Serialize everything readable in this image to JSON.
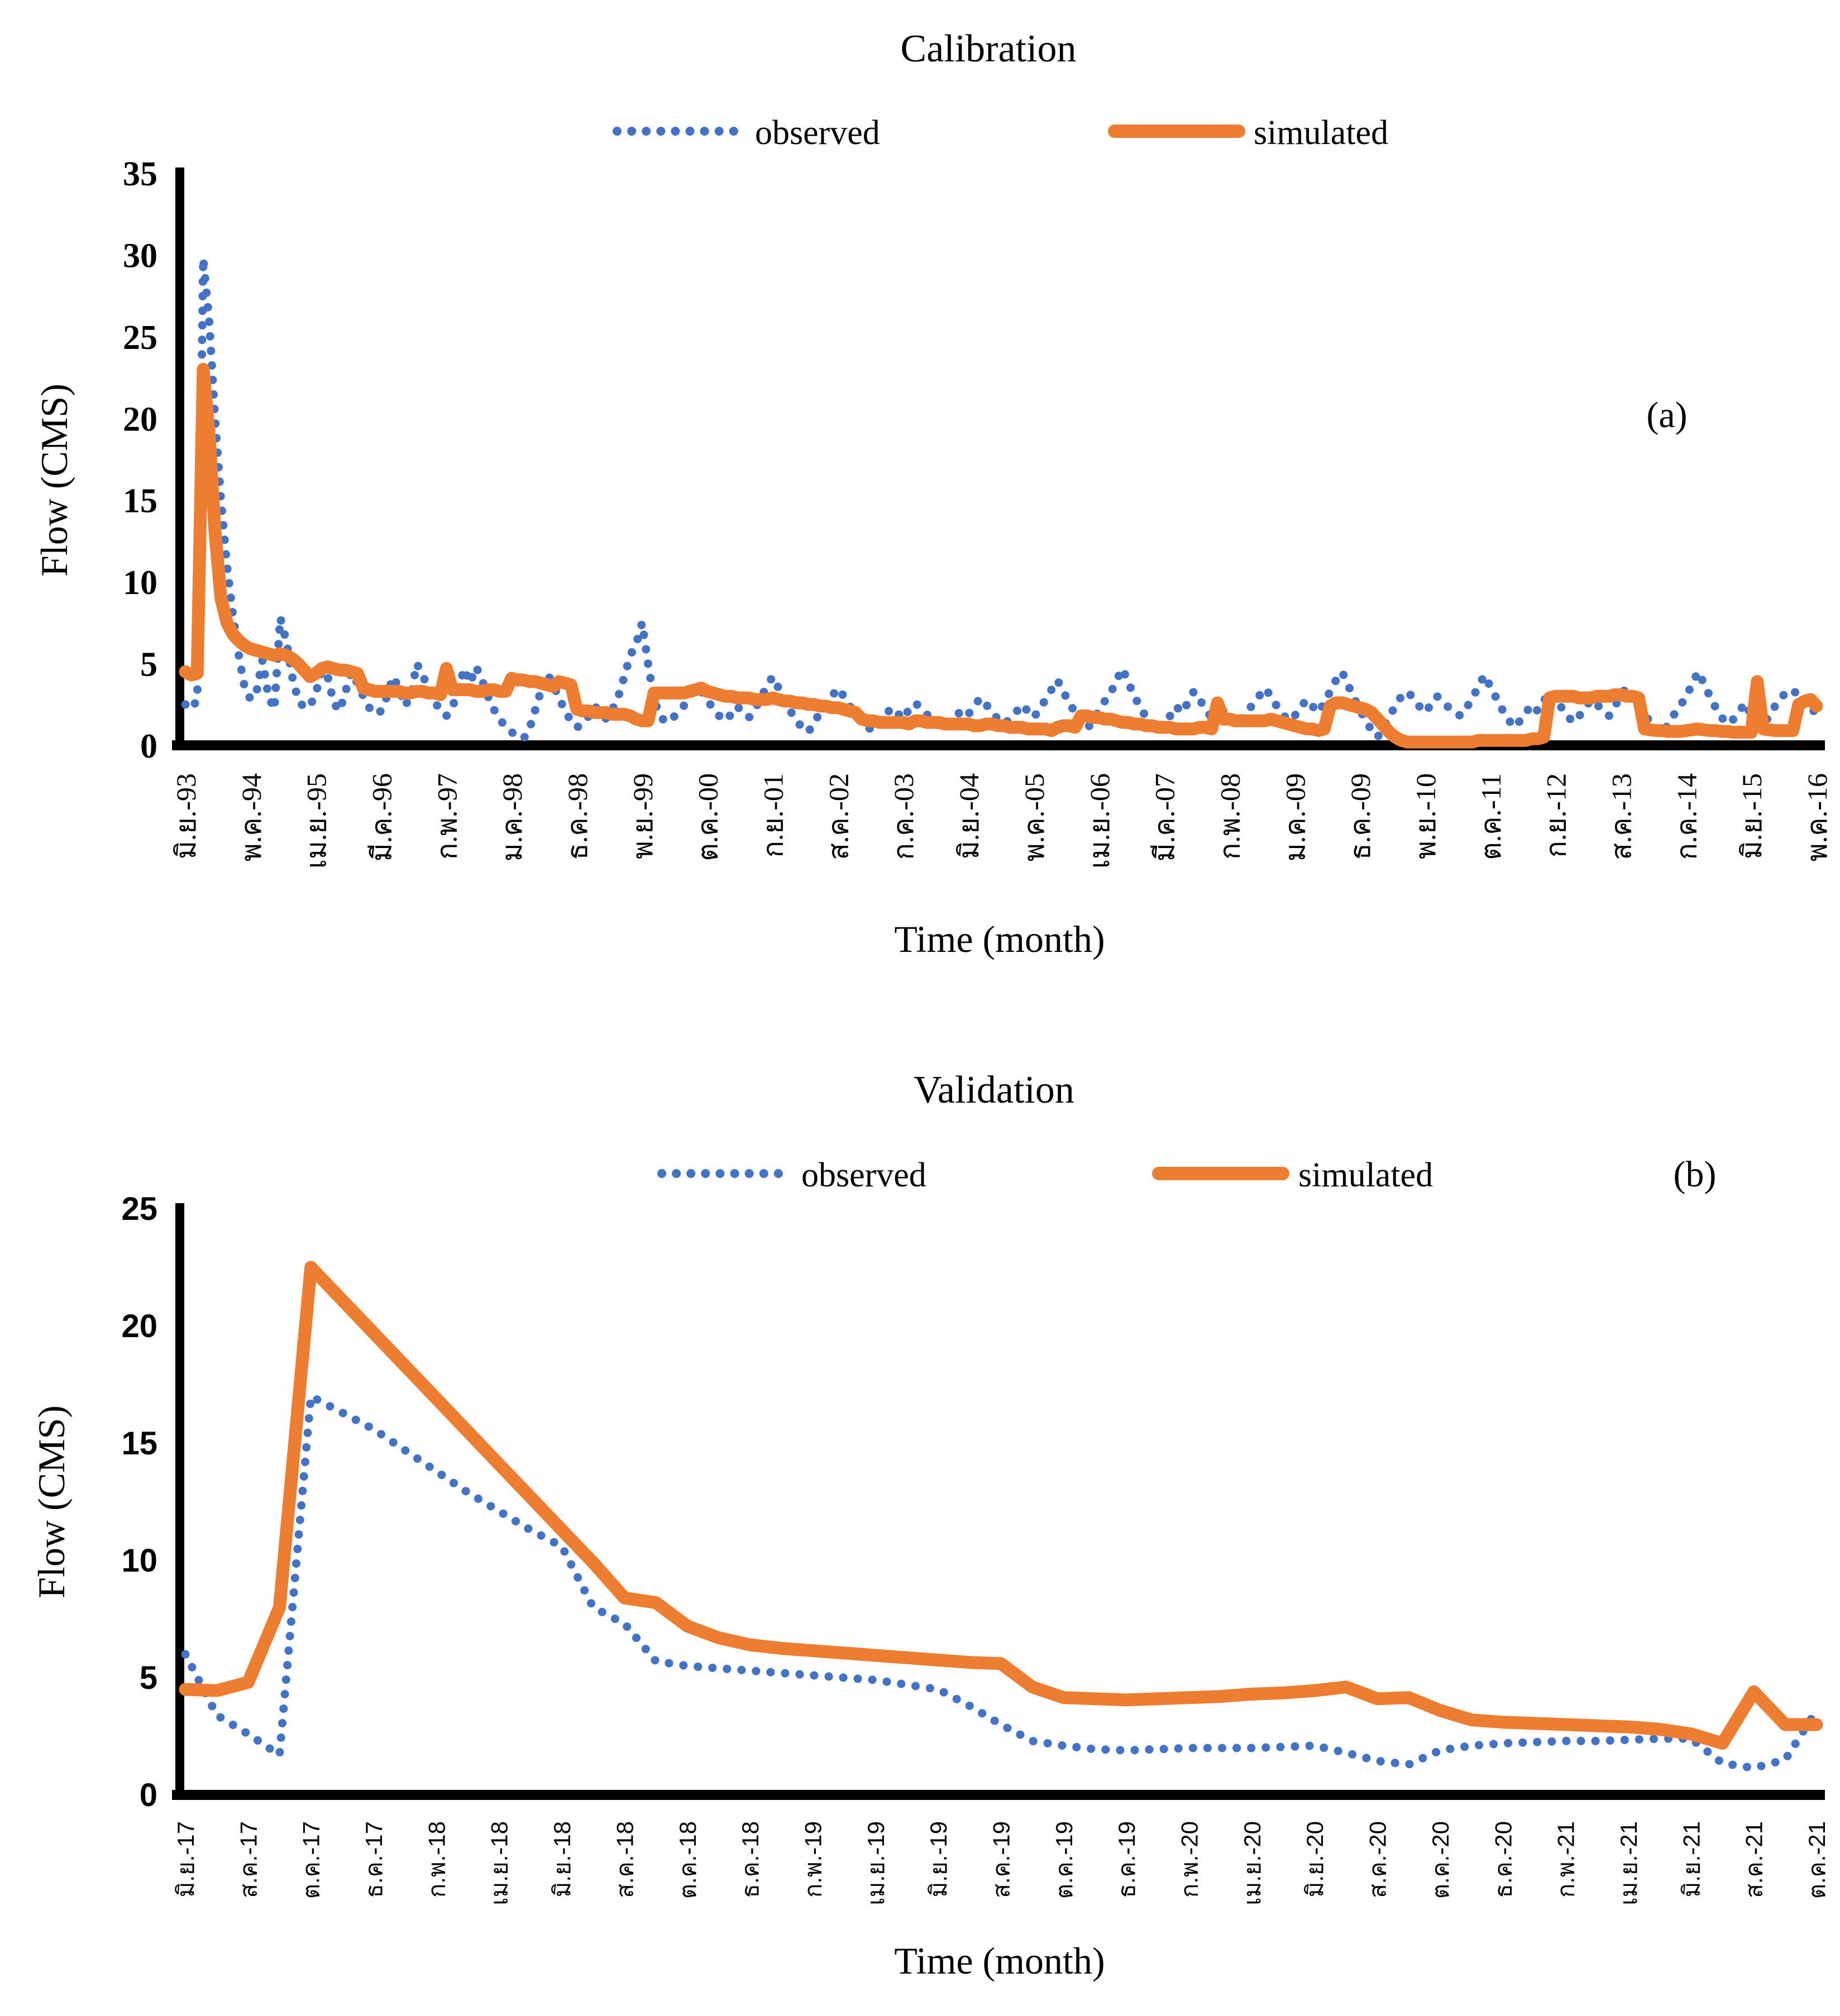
{
  "colors": {
    "observed": "#4472C4",
    "simulated": "#ED7D31",
    "axis": "#000000",
    "background": "#FFFFFF"
  },
  "chart_data": [
    {
      "id": "calibration",
      "type": "line",
      "title": "Calibration",
      "panel_label": "(a)",
      "xlabel": "Time (month)",
      "ylabel": "Flow (CMS)",
      "legend": {
        "observed_label": "observed",
        "simulated_label": "simulated",
        "position": "top"
      },
      "grid": false,
      "ylim": [
        0,
        35
      ],
      "yticks": [
        0,
        5,
        10,
        15,
        20,
        25,
        30,
        35
      ],
      "x_start": "มิ.ย.-93",
      "x_end": "พ.ค.-16",
      "x_tick_labels": [
        "มิ.ย.-93",
        "พ.ค.-94",
        "เม.ย.-95",
        "มี.ค.-96",
        "ก.พ.-97",
        "ม.ค.-98",
        "ธ.ค.-98",
        "พ.ย.-99",
        "ต.ค.-00",
        "ก.ย.-01",
        "ส.ค.-02",
        "ก.ค.-03",
        "มิ.ย.-04",
        "พ.ค.-05",
        "เม.ย.-06",
        "มี.ค.-07",
        "ก.พ.-08",
        "ม.ค.-09",
        "ธ.ค.-09",
        "พ.ย.-10",
        "ต.ค.-11",
        "ก.ย.-12",
        "ส.ค.-13",
        "ก.ค.-14",
        "มิ.ย.-15",
        "พ.ค.-16"
      ],
      "series": [
        {
          "name": "observed",
          "style": "dotted",
          "color": "#4472C4",
          "values": [
            2.5,
            2.2,
            2.8,
            29.8,
            26.0,
            20.0,
            15.0,
            11.0,
            8.0,
            5.5,
            3.5,
            2.8,
            3.3,
            5.2,
            3.0,
            2.2,
            7.8,
            6.4,
            4.2,
            2.8,
            2.3,
            2.4,
            3.2,
            4.6,
            4.2,
            2.6,
            2.1,
            3.3,
            4.5,
            3.8,
            3.0,
            2.3,
            1.9,
            2.1,
            3.0,
            4.2,
            3.5,
            2.4,
            3.0,
            5.0,
            4.3,
            3.4,
            2.7,
            2.1,
            1.8,
            2.3,
            3.4,
            4.7,
            3.8,
            4.8,
            4.0,
            3.0,
            2.2,
            1.6,
            1.1,
            0.8,
            0.6,
            0.4,
            1.0,
            2.2,
            3.4,
            4.4,
            3.7,
            2.9,
            2.1,
            1.5,
            1.1,
            1.3,
            1.8,
            2.4,
            2.0,
            1.6,
            2.2,
            3.0,
            4.2,
            5.5,
            6.2,
            7.5,
            5.0,
            2.8,
            1.8,
            1.4,
            1.6,
            2.0,
            2.4,
            3.0,
            3.5,
            3.3,
            2.8,
            2.2,
            1.8,
            1.5,
            1.9,
            2.4,
            2.0,
            1.7,
            2.2,
            2.9,
            3.6,
            4.2,
            3.5,
            2.8,
            2.1,
            1.5,
            1.1,
            0.8,
            1.4,
            2.0,
            2.4,
            3.0,
            3.5,
            3.0,
            2.4,
            1.9,
            1.5,
            1.1,
            0.9,
            1.3,
            1.8,
            2.3,
            2.0,
            1.6,
            2.2,
            2.6,
            2.3,
            1.9,
            1.5,
            1.2,
            1.0,
            1.4,
            1.8,
            2.2,
            1.9,
            2.4,
            2.9,
            2.5,
            2.0,
            1.6,
            1.3,
            1.6,
            2.0,
            2.5,
            2.1,
            1.7,
            2.2,
            2.8,
            3.4,
            4.0,
            3.3,
            2.6,
            2.0,
            1.4,
            1.0,
            1.5,
            2.1,
            2.7,
            3.2,
            4.0,
            4.7,
            3.8,
            3.0,
            2.3,
            1.7,
            1.2,
            0.8,
            1.2,
            1.8,
            2.4,
            2.0,
            2.6,
            3.3,
            2.8,
            2.2,
            1.7,
            2.6,
            2.1,
            1.6,
            1.2,
            1.6,
            2.1,
            2.5,
            3.0,
            3.5,
            3.0,
            2.4,
            1.9,
            1.5,
            1.8,
            2.3,
            2.8,
            2.4,
            2.0,
            2.6,
            3.3,
            4.0,
            4.5,
            3.7,
            2.9,
            2.2,
            1.5,
            0.9,
            0.5,
            1.1,
            1.8,
            2.4,
            3.0,
            3.3,
            2.9,
            2.4,
            2.0,
            2.5,
            3.0,
            2.7,
            2.3,
            2.0,
            1.8,
            2.3,
            2.9,
            3.6,
            4.3,
            3.6,
            2.9,
            2.2,
            1.6,
            1.1,
            1.5,
            2.0,
            2.5,
            2.1,
            2.7,
            3.3,
            2.9,
            2.3,
            1.8,
            1.4,
            1.8,
            2.3,
            2.8,
            2.5,
            2.1,
            1.8,
            2.4,
            3.0,
            3.6,
            3.0,
            2.4,
            1.9,
            1.4,
            1.0,
            0.7,
            1.3,
            1.9,
            2.4,
            3.0,
            3.7,
            4.5,
            3.8,
            3.0,
            2.3,
            1.7,
            1.3,
            1.6,
            2.1,
            2.6,
            1.8,
            1.4,
            1.2,
            1.8,
            2.4,
            2.9,
            3.3,
            3.4,
            3.0,
            2.5,
            2.0,
            2.2
          ]
        },
        {
          "name": "simulated",
          "style": "solid",
          "color": "#ED7D31",
          "values": [
            4.5,
            4.3,
            4.4,
            23.0,
            19.0,
            13.0,
            9.0,
            7.5,
            6.8,
            6.4,
            6.1,
            5.9,
            5.8,
            5.7,
            5.6,
            5.5,
            5.6,
            5.5,
            5.3,
            5.0,
            4.6,
            4.2,
            4.4,
            4.7,
            4.8,
            4.7,
            4.6,
            4.6,
            4.5,
            4.4,
            3.5,
            3.4,
            3.3,
            3.3,
            3.3,
            3.3,
            3.3,
            3.2,
            3.2,
            3.3,
            3.3,
            3.2,
            3.2,
            3.1,
            4.7,
            3.4,
            3.4,
            3.4,
            3.4,
            3.3,
            3.3,
            3.4,
            3.4,
            3.3,
            3.3,
            4.1,
            4.0,
            4.0,
            3.9,
            3.9,
            3.8,
            3.7,
            3.6,
            3.9,
            3.8,
            3.7,
            2.2,
            2.1,
            2.1,
            2.0,
            2.0,
            2.0,
            1.9,
            1.9,
            1.9,
            1.8,
            1.6,
            1.5,
            1.5,
            3.2,
            3.2,
            3.2,
            3.2,
            3.2,
            3.2,
            3.3,
            3.4,
            3.5,
            3.3,
            3.2,
            3.1,
            3.0,
            3.0,
            2.9,
            2.9,
            2.9,
            2.8,
            2.8,
            2.8,
            2.9,
            2.8,
            2.7,
            2.7,
            2.6,
            2.6,
            2.5,
            2.5,
            2.4,
            2.4,
            2.3,
            2.3,
            2.2,
            2.1,
            2.0,
            1.6,
            1.5,
            1.5,
            1.4,
            1.4,
            1.4,
            1.4,
            1.4,
            1.3,
            1.5,
            1.5,
            1.4,
            1.4,
            1.4,
            1.3,
            1.3,
            1.3,
            1.3,
            1.3,
            1.2,
            1.2,
            1.3,
            1.3,
            1.2,
            1.2,
            1.1,
            1.1,
            1.1,
            1.0,
            1.0,
            1.0,
            1.0,
            0.9,
            1.1,
            1.2,
            1.2,
            1.1,
            1.8,
            1.8,
            1.7,
            1.7,
            1.6,
            1.6,
            1.5,
            1.4,
            1.4,
            1.3,
            1.3,
            1.2,
            1.2,
            1.1,
            1.1,
            1.1,
            1.0,
            1.0,
            1.0,
            1.0,
            1.1,
            1.1,
            1.0,
            2.6,
            1.6,
            1.6,
            1.5,
            1.5,
            1.5,
            1.5,
            1.5,
            1.5,
            1.6,
            1.5,
            1.4,
            1.3,
            1.2,
            1.1,
            1.0,
            1.0,
            0.9,
            1.0,
            2.4,
            2.6,
            2.6,
            2.5,
            2.4,
            2.3,
            2.2,
            2.0,
            1.6,
            1.2,
            0.8,
            0.5,
            0.3,
            0.2,
            0.2,
            0.2,
            0.2,
            0.2,
            0.2,
            0.2,
            0.2,
            0.2,
            0.2,
            0.2,
            0.2,
            0.3,
            0.3,
            0.3,
            0.3,
            0.3,
            0.3,
            0.3,
            0.3,
            0.3,
            0.4,
            0.4,
            0.5,
            2.9,
            3.0,
            3.0,
            3.0,
            3.0,
            2.9,
            2.9,
            2.9,
            3.0,
            3.0,
            3.0,
            3.1,
            3.1,
            3.0,
            3.0,
            2.9,
            1.0,
            0.95,
            0.9,
            0.9,
            0.85,
            0.85,
            0.85,
            0.9,
            0.95,
            1.0,
            0.95,
            0.9,
            0.9,
            0.85,
            0.85,
            0.8,
            0.8,
            0.8,
            0.8,
            3.9,
            1.0,
            0.95,
            0.9,
            0.9,
            0.9,
            0.9,
            2.5,
            2.7,
            2.8,
            2.4
          ]
        }
      ]
    },
    {
      "id": "validation",
      "type": "line",
      "title": "Validation",
      "panel_label": "(b)",
      "xlabel": "Time (month)",
      "ylabel": "Flow (CMS)",
      "legend": {
        "observed_label": "observed",
        "simulated_label": "simulated",
        "position": "top"
      },
      "grid": false,
      "ylim": [
        0,
        25
      ],
      "yticks": [
        0,
        5,
        10,
        15,
        20,
        25
      ],
      "x_start": "มิ.ย.-17",
      "x_end": "ต.ค.-21",
      "x_tick_labels": [
        "มิ.ย.-17",
        "ส.ค.-17",
        "ต.ค.-17",
        "ธ.ค.-17",
        "ก.พ.-18",
        "เม.ย.-18",
        "มิ.ย.-18",
        "ส.ค.-18",
        "ต.ค.-18",
        "ธ.ค.-18",
        "ก.พ.-19",
        "เม.ย.-19",
        "มิ.ย.-19",
        "ส.ค.-19",
        "ต.ค.-19",
        "ธ.ค.-19",
        "ก.พ.-20",
        "เม.ย.-20",
        "มิ.ย.-20",
        "ส.ค.-20",
        "ต.ค.-20",
        "ธ.ค.-20",
        "ก.พ.-21",
        "เม.ย.-21",
        "มิ.ย.-21",
        "ส.ค.-21",
        "ต.ค.-21"
      ],
      "series": [
        {
          "name": "observed",
          "style": "dotted",
          "color": "#4472C4",
          "values": [
            6.0,
            3.4,
            2.6,
            1.7,
            17.0,
            16.3,
            15.6,
            14.7,
            13.8,
            12.9,
            12.1,
            11.3,
            10.6,
            8.0,
            7.3,
            5.7,
            5.5,
            5.4,
            5.3,
            5.2,
            5.1,
            5.0,
            4.9,
            4.7,
            4.5,
            3.8,
            3.0,
            2.3,
            2.1,
            1.95,
            1.9,
            1.95,
            2.0,
            2.0,
            2.0,
            2.05,
            2.1,
            1.8,
            1.45,
            1.3,
            1.9,
            2.1,
            2.2,
            2.25,
            2.3,
            2.3,
            2.35,
            2.4,
            2.4,
            1.35,
            1.15,
            1.5,
            3.6
          ]
        },
        {
          "name": "simulated",
          "style": "solid",
          "color": "#ED7D31",
          "values": [
            4.5,
            4.45,
            4.8,
            8.0,
            22.5,
            21.1,
            19.7,
            18.3,
            16.9,
            15.5,
            14.1,
            12.7,
            11.3,
            9.9,
            8.4,
            8.2,
            7.2,
            6.7,
            6.4,
            6.25,
            6.15,
            6.05,
            5.95,
            5.85,
            5.75,
            5.65,
            5.6,
            4.6,
            4.15,
            4.1,
            4.05,
            4.1,
            4.15,
            4.2,
            4.3,
            4.35,
            4.45,
            4.6,
            4.1,
            4.15,
            3.6,
            3.2,
            3.1,
            3.05,
            3.0,
            2.95,
            2.9,
            2.8,
            2.6,
            2.2,
            4.4,
            3.0,
            3.0
          ]
        }
      ]
    }
  ]
}
